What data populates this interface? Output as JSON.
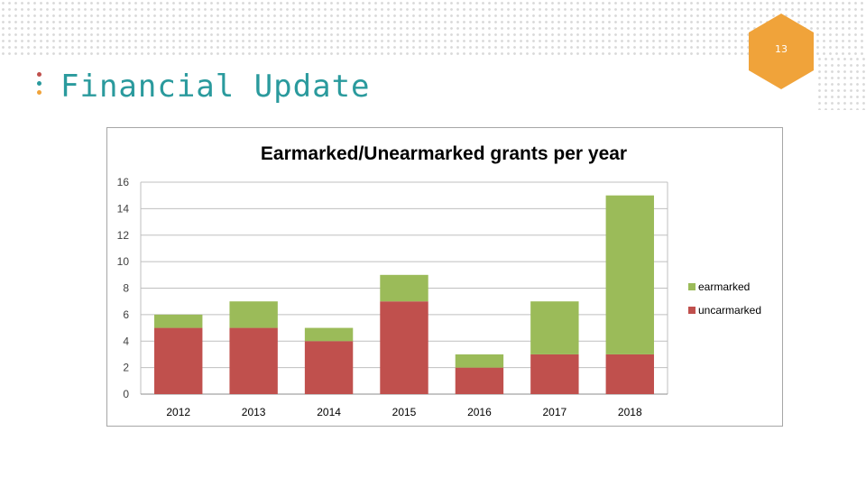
{
  "slide": {
    "page_number": "13",
    "title": "Financial Update"
  },
  "colors": {
    "accent_teal": "#2a9a9d",
    "accent_orange": "#f0a33a",
    "earmarked": "#9bbb59",
    "unearmarked": "#c0504d"
  },
  "chart_data": {
    "type": "bar",
    "stacked": true,
    "title": "Earmarked/Unearmarked grants per year",
    "xlabel": "",
    "ylabel": "",
    "categories": [
      "2012",
      "2013",
      "2014",
      "2015",
      "2016",
      "2017",
      "2018"
    ],
    "series": [
      {
        "name": "uncarmarked",
        "color": "#c0504d",
        "values": [
          5,
          5,
          4,
          7,
          2,
          3,
          3
        ]
      },
      {
        "name": "earmarked",
        "color": "#9bbb59",
        "values": [
          1,
          2,
          1,
          2,
          1,
          4,
          12
        ]
      }
    ],
    "legend_order": [
      "earmarked",
      "uncarmarked"
    ],
    "ylim": [
      0,
      16
    ],
    "yticks": [
      "0",
      "2",
      "4",
      "6",
      "8",
      "10",
      "12",
      "14",
      "16"
    ],
    "grid": true,
    "legend_position": "right"
  }
}
